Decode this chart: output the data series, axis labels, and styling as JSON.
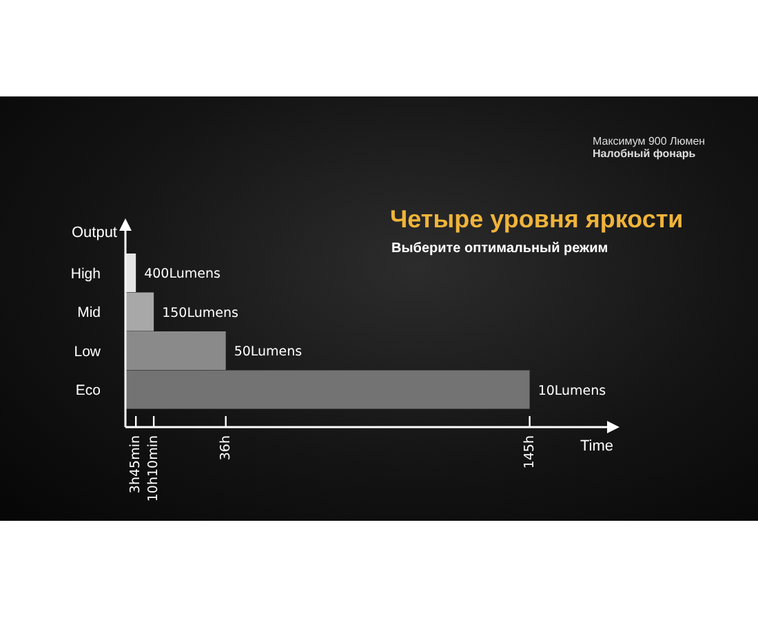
{
  "chart_data": {
    "type": "bar",
    "orientation": "horizontal",
    "title": "Четыре уровня яркости",
    "subtitle": "Выберите оптимальный режим",
    "xlabel": "Time",
    "ylabel": "Output",
    "annotations": [
      "Максимум 900 Люмен",
      "Налобный фонарь",
      {
        "text": "400Lumens",
        "x": 3.75,
        "y": "High"
      },
      {
        "text": "150Lumens",
        "x": 10.17,
        "y": "Mid"
      },
      {
        "text": "50Lumens",
        "x": 36,
        "y": "Low"
      },
      {
        "text": "10Lumens",
        "x": 145,
        "y": "Eco"
      }
    ],
    "categories": [
      "High",
      "Mid",
      "Low",
      "Eco"
    ],
    "values": [
      3.75,
      10.17,
      36,
      145
    ],
    "colors": [
      "#e4e4e4",
      "#a8a8a8",
      "#8a8a8a",
      "#737373"
    ],
    "xlim": [
      0,
      175
    ],
    "xticks": [
      {
        "value": 3.75,
        "label": "3h45min"
      },
      {
        "value": 10.17,
        "label": "10h10min"
      },
      {
        "value": 36,
        "label": "36h"
      },
      {
        "value": 145,
        "label": "145h"
      }
    ]
  }
}
